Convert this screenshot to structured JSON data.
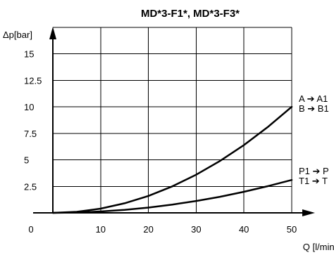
{
  "chart_data": {
    "type": "line",
    "title": "MD*3-F1*, MD*3-F3*",
    "ylabel": "Δp[bar]",
    "xlabel": "Q [l/min]",
    "xlim": [
      0,
      50
    ],
    "ylim": [
      0,
      17.5
    ],
    "x_ticks": [
      "0",
      "10",
      "20",
      "30",
      "40",
      "50"
    ],
    "y_ticks": [
      "2.5",
      "5",
      "7.5",
      "10",
      "12.5",
      "15"
    ],
    "grid": true,
    "series": [
      {
        "labels": [
          "A ➔ A1",
          "B ➔ B1"
        ],
        "x": [
          0,
          5,
          10,
          15,
          20,
          25,
          30,
          35,
          40,
          45,
          50
        ],
        "y": [
          0,
          0.1,
          0.4,
          0.9,
          1.6,
          2.5,
          3.6,
          4.9,
          6.4,
          8.1,
          10
        ]
      },
      {
        "labels": [
          "P1 ➔ P",
          "T1 ➔ T"
        ],
        "x": [
          0,
          5,
          10,
          15,
          20,
          25,
          30,
          35,
          40,
          45,
          50
        ],
        "y": [
          0,
          0.03,
          0.13,
          0.28,
          0.5,
          0.78,
          1.12,
          1.52,
          1.99,
          2.52,
          3.1
        ]
      }
    ]
  }
}
